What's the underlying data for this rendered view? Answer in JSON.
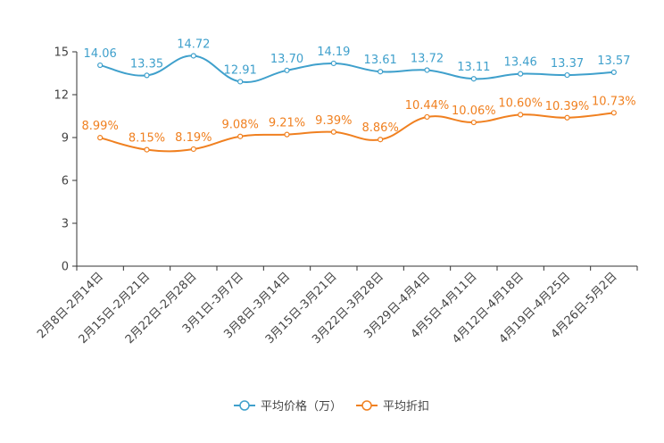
{
  "chart_data": {
    "type": "line",
    "title": "",
    "xlabel": "",
    "ylabel": "",
    "ylim": [
      0,
      15
    ],
    "yticks": [
      0,
      3,
      6,
      9,
      12,
      15
    ],
    "grid": false,
    "legend_position": "bottom",
    "categories": [
      "2月8日-2月14日",
      "2月15日-2月21日",
      "2月22日-2月28日",
      "3月1日-3月7日",
      "3月8日-3月14日",
      "3月15日-3月21日",
      "3月22日-3月28日",
      "3月29日-4月4日",
      "4月5日-4月11日",
      "4月12日-4月18日",
      "4月19日-4月25日",
      "4月26日-5月2日"
    ],
    "series": [
      {
        "name": "平均价格（万）",
        "color": "#3fa0cc",
        "values": [
          14.06,
          13.35,
          14.72,
          12.91,
          13.7,
          14.19,
          13.61,
          13.72,
          13.11,
          13.46,
          13.37,
          13.57
        ],
        "labels": [
          "14.06",
          "13.35",
          "14.72",
          "12.91",
          "13.70",
          "14.19",
          "13.61",
          "13.72",
          "13.11",
          "13.46",
          "13.37",
          "13.57"
        ]
      },
      {
        "name": "平均折扣",
        "color": "#f08020",
        "values": [
          8.99,
          8.15,
          8.19,
          9.08,
          9.21,
          9.39,
          8.86,
          10.44,
          10.06,
          10.6,
          10.39,
          10.73
        ],
        "labels": [
          "8.99%",
          "8.15%",
          "8.19%",
          "9.08%",
          "9.21%",
          "9.39%",
          "8.86%",
          "10.44%",
          "10.06%",
          "10.60%",
          "10.39%",
          "10.73%"
        ]
      }
    ]
  }
}
